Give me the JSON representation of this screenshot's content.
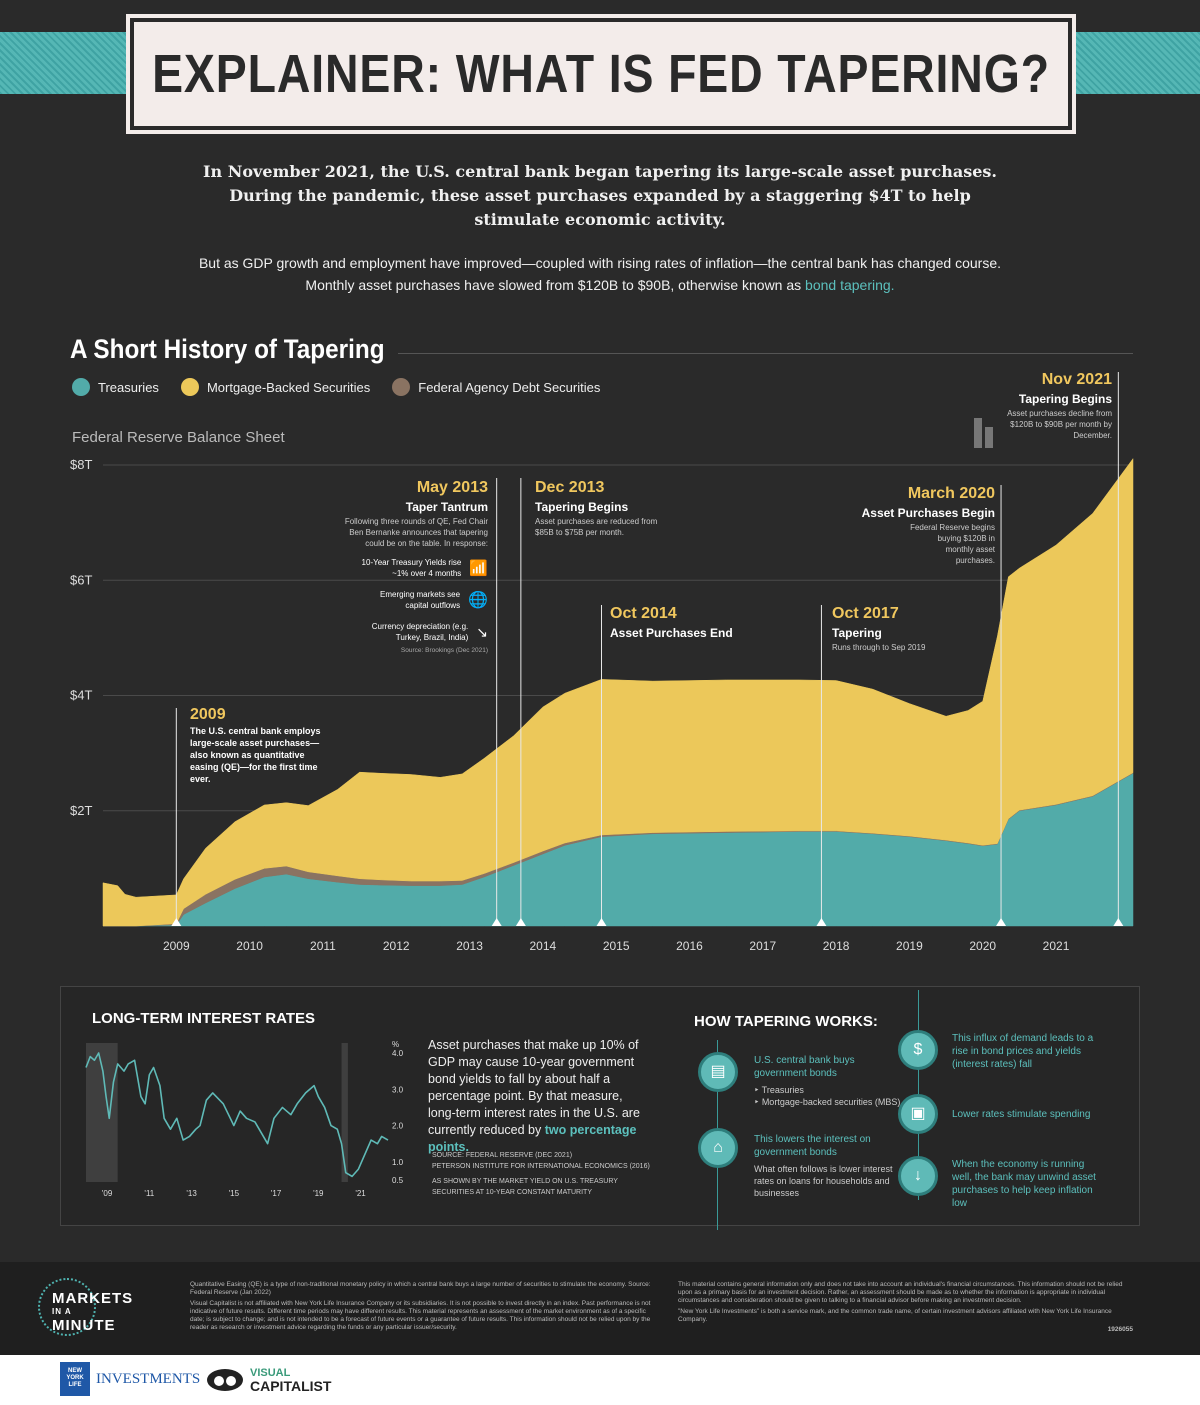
{
  "title": "EXPLAINER: WHAT IS FED TAPERING?",
  "intro": {
    "lead": "In November 2021, the U.S. central bank began tapering its large-scale asset purchases. During the pandemic, these asset purchases expanded by a staggering",
    "lead_value": "$4T",
    "lead_end": "to help stimulate economic activity.",
    "body": "But as GDP growth and employment have improved—coupled with rising rates of inflation—the central bank has changed course. Monthly asset purchases have slowed from $120B to $90B, otherwise known as",
    "body_link": "bond tapering."
  },
  "history": {
    "title": "A Short History of Tapering",
    "legend": [
      "Treasuries",
      "Mortgage-Backed Securities",
      "Federal Agency Debt Securities"
    ],
    "chart_label": "Federal Reserve Balance Sheet"
  },
  "colors": {
    "treasuries": "#52aba9",
    "mbs": "#ecc85a",
    "agency": "#8a7362",
    "bg": "#2a2a2a",
    "accent": "#5cc0bd"
  },
  "chart_data": [
    {
      "type": "area",
      "ylim": [
        0,
        8
      ],
      "yticks": [
        2,
        4,
        6,
        8
      ],
      "ytick_labels": [
        "$2T",
        "$4T",
        "$6T",
        "$8T"
      ],
      "xlim": [
        2008,
        2022.05
      ],
      "xticks": [
        2009,
        2010,
        2011,
        2012,
        2013,
        2014,
        2015,
        2016,
        2017,
        2018,
        2019,
        2020,
        2021
      ],
      "xtick_labels": [
        "2009",
        "2010",
        "2011",
        "2012",
        "2013",
        "2014",
        "2015",
        "2016",
        "2017",
        "2018",
        "2019",
        "2020",
        "2021"
      ],
      "x": [
        2008.0,
        2008.2,
        2008.3,
        2008.45,
        2009.0,
        2009.1,
        2009.4,
        2009.8,
        2010.2,
        2010.5,
        2010.8,
        2011.2,
        2011.5,
        2011.8,
        2012.2,
        2012.6,
        2012.9,
        2013.2,
        2013.6,
        2014.0,
        2014.3,
        2014.8,
        2015.5,
        2016.5,
        2017.5,
        2018.0,
        2018.5,
        2019.0,
        2019.5,
        2019.8,
        2020.0,
        2020.2,
        2020.35,
        2020.5,
        2021.0,
        2021.5,
        2022.05
      ],
      "series": [
        {
          "name": "Treasuries",
          "values": [
            0,
            0,
            0,
            0,
            0.02,
            0.2,
            0.4,
            0.65,
            0.85,
            0.9,
            0.82,
            0.76,
            0.72,
            0.71,
            0.7,
            0.7,
            0.72,
            0.85,
            1.05,
            1.25,
            1.4,
            1.55,
            1.6,
            1.62,
            1.64,
            1.64,
            1.6,
            1.55,
            1.48,
            1.43,
            1.39,
            1.42,
            1.85,
            2.0,
            2.1,
            2.25,
            2.65
          ]
        },
        {
          "name": "Federal Agency Debt Securities",
          "values": [
            0,
            0,
            0,
            0,
            0.02,
            0.1,
            0.15,
            0.16,
            0.15,
            0.14,
            0.12,
            0.11,
            0.1,
            0.09,
            0.08,
            0.08,
            0.07,
            0.06,
            0.05,
            0.05,
            0.04,
            0.03,
            0.02,
            0.02,
            0.01,
            0.01,
            0.01,
            0.01,
            0.01,
            0.01,
            0.01,
            0.01,
            0.01,
            0.01,
            0.01,
            0.01,
            0.01
          ]
        },
        {
          "name": "Mortgage-Backed Securities",
          "values": [
            0.75,
            0.7,
            0.55,
            0.5,
            0.5,
            0.52,
            0.8,
            1.0,
            1.1,
            1.1,
            1.15,
            1.5,
            1.85,
            1.85,
            1.85,
            1.8,
            1.85,
            2.0,
            2.2,
            2.5,
            2.6,
            2.7,
            2.63,
            2.63,
            2.62,
            2.61,
            2.5,
            2.3,
            2.15,
            2.3,
            2.5,
            3.6,
            4.2,
            4.2,
            4.5,
            4.9,
            5.45
          ]
        }
      ],
      "events": [
        {
          "x": 2009.0,
          "date": "2009",
          "heading": "",
          "text": "The U.S. central bank employs large-scale asset purchases—also known as quantitative easing (QE)—for the first time ever."
        },
        {
          "x": 2013.37,
          "date": "May 2013",
          "heading": "Taper Tantrum",
          "text": "Following three rounds of QE, Fed Chair Ben Bernanke announces that tapering could be on the table. In response:",
          "items": [
            "10-Year Treasury Yields rise ~1% over 4 months",
            "Emerging markets see capital outflows",
            "Currency depreciation (e.g. Turkey, Brazil, India)"
          ],
          "source": "Source: Brookings (Dec 2021)"
        },
        {
          "x": 2013.7,
          "date": "Dec 2013",
          "heading": "Tapering Begins",
          "text": "Asset purchases are reduced from $85B to $75B per month."
        },
        {
          "x": 2014.8,
          "date": "Oct 2014",
          "heading": "Asset Purchases End",
          "text": ""
        },
        {
          "x": 2017.8,
          "date": "Oct 2017",
          "heading": "Tapering",
          "text": "Runs through to Sep 2019"
        },
        {
          "x": 2020.25,
          "date": "March 2020",
          "heading": "Asset Purchases Begin",
          "text": "Federal Reserve begins buying $120B in monthly asset purchases."
        },
        {
          "x": 2021.85,
          "date": "Nov 2021",
          "heading": "Tapering Begins",
          "text": "Asset purchases decline from $120B to $90B per month by December."
        }
      ]
    },
    {
      "type": "line",
      "title": "LONG-TERM INTEREST RATES",
      "ylabel": "%",
      "ylim": [
        0.5,
        4.0
      ],
      "yticks": [
        4.0,
        3.0,
        2.0,
        1.0,
        0.5
      ],
      "ytick_labels": [
        "4.0",
        "3.0",
        "2.0",
        "1.0",
        "0.5"
      ],
      "xlim": [
        2008.0,
        2022.3
      ],
      "xticks": [
        2009,
        2011,
        2013,
        2015,
        2017,
        2019,
        2021
      ],
      "xtick_labels": [
        "'09",
        "'11",
        "'13",
        "'15",
        "'17",
        "'19",
        "'21"
      ],
      "shaded": [
        [
          2008.0,
          2009.5
        ],
        [
          2020.1,
          2020.4
        ]
      ],
      "x": [
        2008.0,
        2008.2,
        2008.4,
        2008.6,
        2008.8,
        2008.95,
        2009.1,
        2009.3,
        2009.5,
        2009.8,
        2010.0,
        2010.3,
        2010.6,
        2010.8,
        2011.0,
        2011.2,
        2011.5,
        2011.7,
        2012.0,
        2012.3,
        2012.6,
        2012.9,
        2013.2,
        2013.4,
        2013.7,
        2014.0,
        2014.5,
        2015.0,
        2015.3,
        2015.6,
        2016.0,
        2016.3,
        2016.6,
        2016.9,
        2017.3,
        2017.7,
        2018.0,
        2018.4,
        2018.8,
        2019.0,
        2019.3,
        2019.6,
        2019.9,
        2020.1,
        2020.3,
        2020.6,
        2020.9,
        2021.2,
        2021.5,
        2021.8,
        2022.0,
        2022.3
      ],
      "values": [
        3.6,
        3.9,
        3.8,
        4.0,
        3.5,
        2.8,
        2.2,
        3.2,
        3.7,
        3.5,
        3.7,
        3.8,
        2.8,
        2.6,
        3.4,
        3.6,
        3.1,
        2.2,
        1.9,
        2.2,
        1.6,
        1.7,
        1.9,
        2.0,
        2.7,
        2.9,
        2.6,
        2.0,
        2.4,
        2.2,
        2.1,
        1.8,
        1.5,
        2.2,
        2.5,
        2.3,
        2.6,
        2.9,
        3.1,
        2.8,
        2.5,
        2.0,
        1.9,
        1.5,
        0.7,
        0.6,
        0.8,
        1.2,
        1.6,
        1.5,
        1.7,
        1.6
      ]
    }
  ],
  "long_term": {
    "text_before": "Asset purchases that make up 10% of GDP may cause 10-year government bond yields to fall by about half a percentage point. By that measure, long-term interest rates in the U.S. are currently reduced by",
    "highlight": "two percentage points.",
    "source1": "SOURCE: FEDERAL RESERVE (DEC 2021)",
    "source2": "PETERSON INSTITUTE FOR INTERNATIONAL ECONOMICS (2016)",
    "source3": "AS SHOWN BY THE MARKET YIELD ON U.S. TREASURY",
    "source4": "SECURITIES AT 10-YEAR CONSTANT MATURITY"
  },
  "how_tapering": {
    "title": "HOW TAPERING WORKS:",
    "step1": "U.S. central bank buys government bonds",
    "step1_sub1": "Treasuries",
    "step1_sub2": "Mortgage-backed securities (MBS)",
    "step2": "This lowers the interest on government bonds",
    "step2_sub": "What often follows is lower interest rates on loans for households and businesses",
    "step3": "This influx of demand leads to a rise in bond prices and yields (interest rates) fall",
    "step4": "Lower rates stimulate spending",
    "step5": "When the economy is running well, the bank may unwind asset purchases to help keep inflation low"
  },
  "footer": {
    "brand_line1": "MARKETS",
    "brand_line2": "IN A",
    "brand_line3": "MINUTE",
    "qe_note": "Quantitative Easing (QE) is a type of non-traditional monetary policy in which a central bank buys a large number of securities to stimulate the economy. Source: Federal Reserve (Jan 2022)",
    "disclaimer": "Visual Capitalist is not affiliated with New York Life Insurance Company or its subsidiaries. It is not possible to invest directly in an index. Past performance is not indicative of future results. Different time periods may have different results. This material represents an assessment of the market environment as of a specific date; is subject to change; and is not intended to be a forecast of future events or a guarantee of future results. This information should not be relied upon by the reader as research or investment advice regarding the funds or any particular issuer/security.",
    "general_info": "This material contains general information only and does not take into account an individual's financial circumstances. This information should not be relied upon as a primary basis for an investment decision. Rather, an assessment should be made as to whether the information is appropriate in individual circumstances and consideration should be given to talking to a financial advisor before making an investment decision.",
    "nyli_note": "\"New York Life Investments\" is both a service mark, and the common trade name, of certain investment advisors affiliated with New York Life Insurance Company.",
    "code": "1926055",
    "nyl_logo": "NEW YORK LIFE",
    "nyl_text": "INVESTMENTS",
    "vc_top": "VISUAL",
    "vc_bottom": "CAPITALIST"
  }
}
